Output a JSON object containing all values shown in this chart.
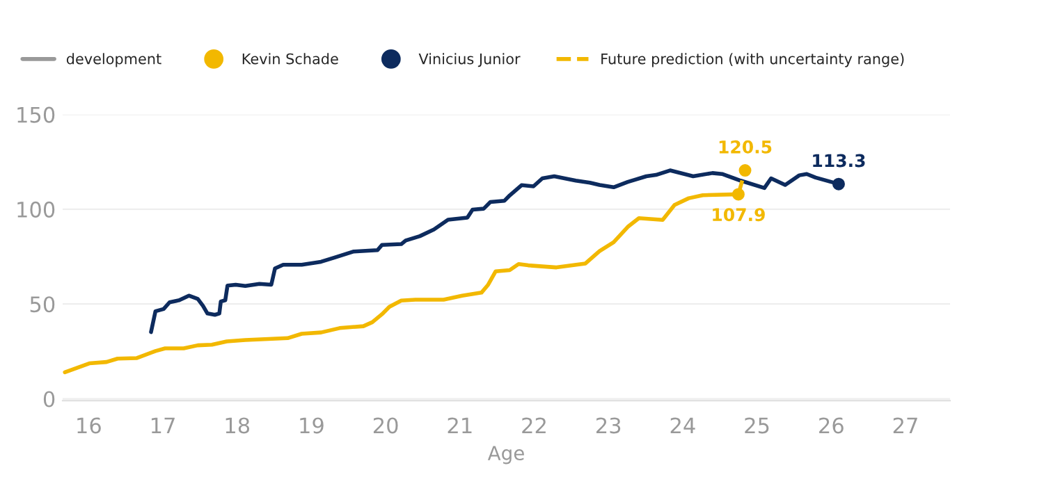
{
  "chart_data": {
    "type": "line",
    "xlabel": "Age",
    "xlim": [
      15.65,
      27.6
    ],
    "ylim": [
      -1,
      150
    ],
    "xticks": [
      16,
      17,
      18,
      19,
      20,
      21,
      22,
      23,
      24,
      25,
      26,
      27
    ],
    "yticks": [
      0,
      50,
      100,
      150
    ],
    "grid": "y",
    "legend": "top",
    "marker": "none",
    "line_style": "solid",
    "annotations": [
      "development",
      {
        "text": "107.9",
        "x": 24.75,
        "y": 107.9
      },
      {
        "text": "120.5",
        "x": 24.84,
        "y": 120.5
      },
      {
        "text": "113.3",
        "x": 26.1,
        "y": 113.3
      }
    ],
    "series": [
      {
        "name": "Kevin Schade",
        "color": "#f2b800",
        "x": [
          15.68,
          16.01,
          16.24,
          16.39,
          16.65,
          16.9,
          17.03,
          17.28,
          17.47,
          17.66,
          17.86,
          18.11,
          18.68,
          18.87,
          19.13,
          19.38,
          19.7,
          19.82,
          19.95,
          20.05,
          20.21,
          20.4,
          20.78,
          21.03,
          21.29,
          21.38,
          21.48,
          21.67,
          21.79,
          21.92,
          22.3,
          22.69,
          22.88,
          23.07,
          23.26,
          23.41,
          23.73,
          23.89,
          24.08,
          24.27,
          24.75
        ],
        "values": [
          14,
          18.7,
          19.4,
          21.2,
          21.5,
          25.2,
          26.6,
          26.6,
          28.2,
          28.5,
          30.3,
          31,
          32,
          34.3,
          35,
          37.3,
          38.3,
          40.4,
          44.6,
          48.5,
          51.8,
          52.3,
          52.3,
          54.4,
          56,
          60.2,
          67.2,
          67.9,
          71.1,
          70.4,
          69.3,
          71.4,
          77.9,
          82.6,
          90.7,
          95.3,
          94.4,
          102.3,
          105.8,
          107.4,
          107.9
        ]
      },
      {
        "name": "Vinicius Junior",
        "color": "#0d2b5e",
        "x": [
          16.84,
          16.9,
          17.01,
          17.09,
          17.22,
          17.35,
          17.47,
          17.54,
          17.6,
          17.7,
          17.76,
          17.78,
          17.84,
          17.87,
          17.98,
          18.11,
          18.3,
          18.46,
          18.51,
          18.62,
          18.87,
          19.13,
          19.32,
          19.57,
          19.89,
          19.95,
          20.21,
          20.27,
          20.46,
          20.65,
          20.84,
          21.1,
          21.17,
          21.32,
          21.41,
          21.6,
          21.67,
          21.83,
          21.99,
          22.11,
          22.27,
          22.56,
          22.75,
          22.88,
          23.07,
          23.26,
          23.51,
          23.64,
          23.83,
          24.14,
          24.4,
          24.53,
          24.78,
          25.1,
          25.19,
          25.38,
          25.57,
          25.67,
          25.79,
          26.1
        ],
        "values": [
          35.2,
          46.2,
          47.4,
          50.9,
          52,
          54.4,
          52.7,
          49,
          45,
          44.3,
          45,
          51.3,
          52,
          59.7,
          60.2,
          59.5,
          60.6,
          60.2,
          68.8,
          70.7,
          70.7,
          72.3,
          74.6,
          77.7,
          78.4,
          81.2,
          81.6,
          83.5,
          85.8,
          89.3,
          94.5,
          95.6,
          99.8,
          100.3,
          103.8,
          104.5,
          107.3,
          112.7,
          112.1,
          116.3,
          117.4,
          115.1,
          114,
          112.8,
          111.6,
          114.4,
          117.4,
          118.1,
          120.5,
          117.4,
          119.1,
          118.6,
          115.1,
          111.2,
          116.3,
          112.8,
          117.9,
          118.6,
          116.7,
          113.3
        ]
      },
      {
        "name": "Future prediction (with uncertainty range)",
        "color": "#f2b800",
        "line_style": "dashed",
        "x": [
          24.75,
          24.84
        ],
        "values": [
          107.9,
          120.5
        ]
      },
      {
        "type": "scatter",
        "marker": "circle",
        "color": "#f2b800",
        "x": [
          24.75,
          24.84
        ],
        "values": [
          107.9,
          120.5
        ]
      },
      {
        "type": "scatter",
        "marker": "circle",
        "color": "#0d2b5e",
        "x": [
          26.1
        ],
        "values": [
          113.3
        ]
      }
    ]
  }
}
